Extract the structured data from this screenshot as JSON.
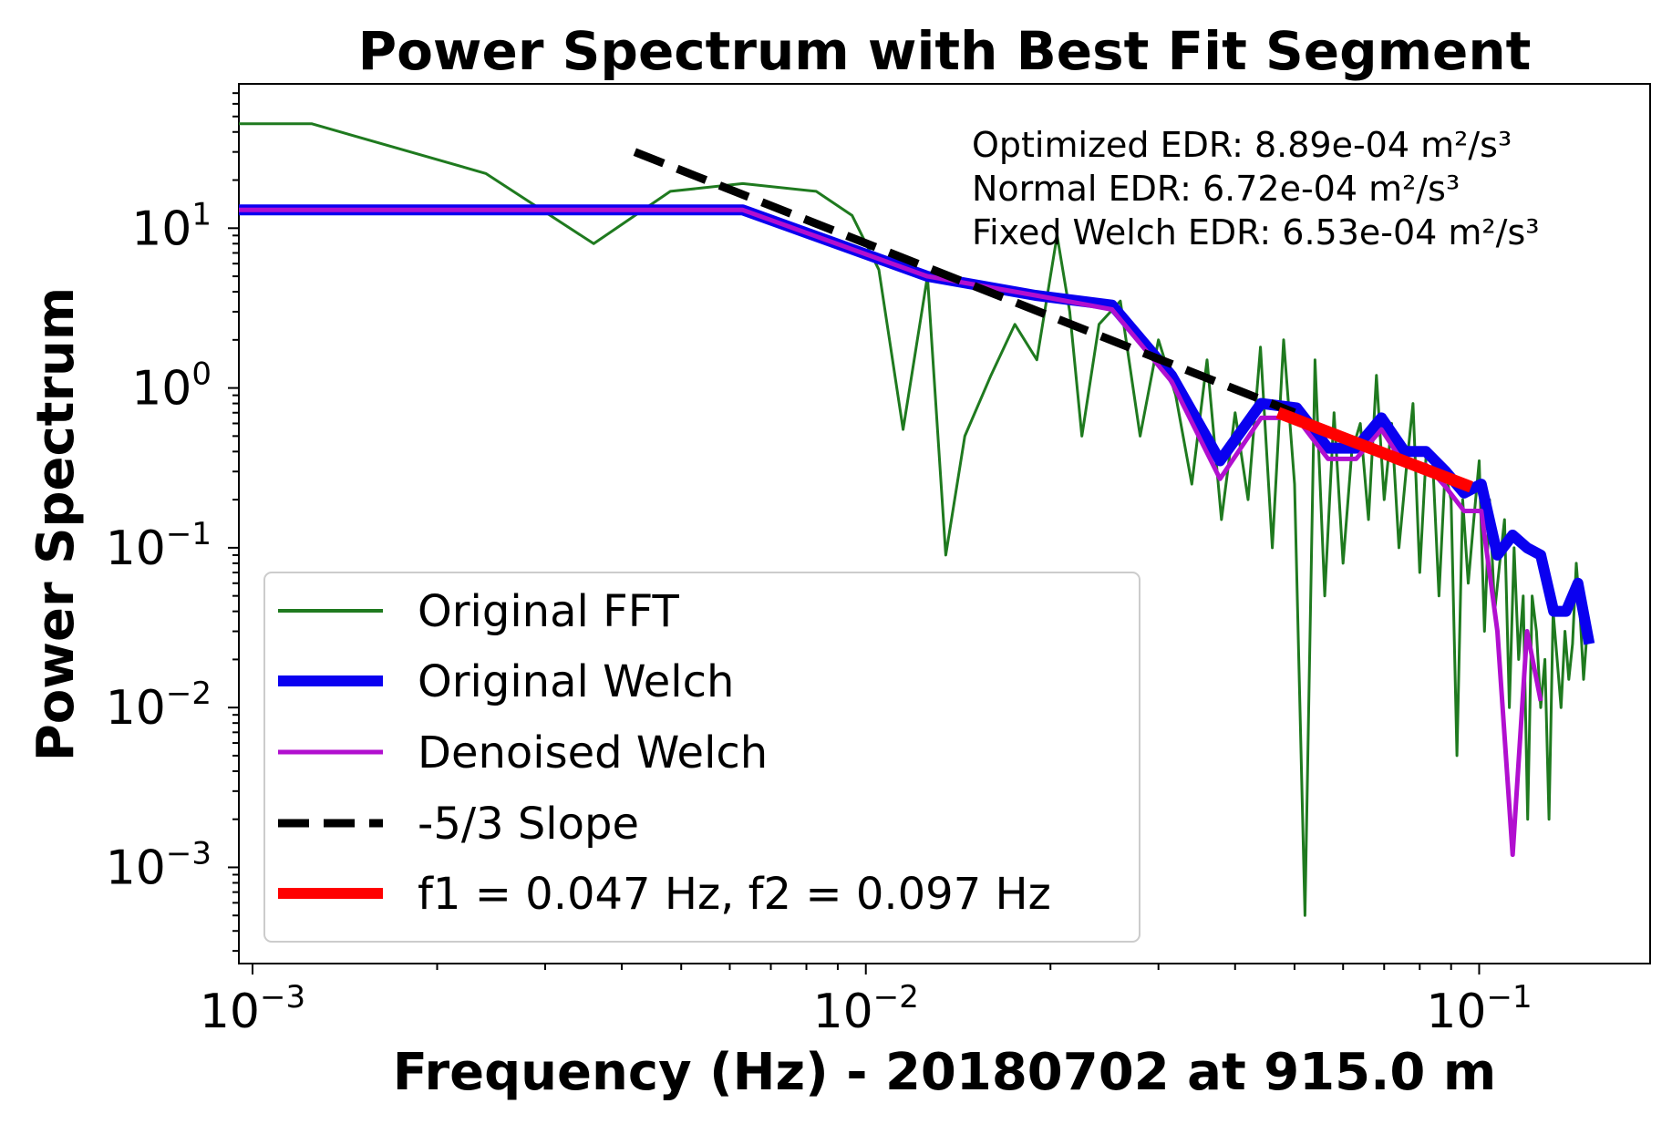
{
  "chart_data": {
    "type": "line",
    "title": "Power Spectrum with Best Fit Segment",
    "xlabel": "Frequency (Hz) - 20180702 at 915.0 m",
    "ylabel": "Power Spectrum",
    "xscale": "log",
    "yscale": "log",
    "xlim": [
      0.00095,
      0.19
    ],
    "ylim": [
      0.00025,
      80
    ],
    "x_ticks": [
      {
        "base": "10",
        "exp": "−3",
        "value": 0.001
      },
      {
        "base": "10",
        "exp": "−2",
        "value": 0.01
      },
      {
        "base": "10",
        "exp": "−1",
        "value": 0.1
      }
    ],
    "y_ticks": [
      {
        "base": "10",
        "exp": "1",
        "value": 10
      },
      {
        "base": "10",
        "exp": "0",
        "value": 1
      },
      {
        "base": "10",
        "exp": "−1",
        "value": 0.1
      },
      {
        "base": "10",
        "exp": "−2",
        "value": 0.01
      },
      {
        "base": "10",
        "exp": "−3",
        "value": 0.001
      }
    ],
    "grid": false,
    "legend_position": "lower-left",
    "annotations": [
      "Optimized EDR: 8.89e-04 m²/s³",
      "Normal EDR: 6.72e-04 m²/s³",
      "Fixed Welch EDR: 6.53e-04 m²/s³"
    ],
    "series": [
      {
        "name": "Original FFT",
        "color": "#1f7a1f",
        "style": "solid",
        "x": [
          0.00095,
          0.00125,
          0.0024,
          0.0036,
          0.0048,
          0.0063,
          0.0083,
          0.0095,
          0.0105,
          0.0115,
          0.0126,
          0.0135,
          0.0145,
          0.016,
          0.0175,
          0.019,
          0.0205,
          0.0215,
          0.0225,
          0.024,
          0.026,
          0.028,
          0.03,
          0.032,
          0.034,
          0.036,
          0.038,
          0.04,
          0.042,
          0.044,
          0.046,
          0.048,
          0.05,
          0.052,
          0.054,
          0.056,
          0.058,
          0.06,
          0.062,
          0.064,
          0.066,
          0.068,
          0.07,
          0.072,
          0.074,
          0.076,
          0.078,
          0.08,
          0.082,
          0.084,
          0.086,
          0.088,
          0.09,
          0.092,
          0.094,
          0.096,
          0.098,
          0.1,
          0.102,
          0.104,
          0.106,
          0.108,
          0.11,
          0.112,
          0.114,
          0.116,
          0.118,
          0.12,
          0.122,
          0.124,
          0.126,
          0.128,
          0.13,
          0.132,
          0.134,
          0.136,
          0.138,
          0.14,
          0.142,
          0.144,
          0.146,
          0.148,
          0.15
        ],
        "values": [
          45,
          45,
          22,
          8,
          17,
          19,
          17,
          12,
          5.5,
          0.55,
          5.0,
          0.09,
          0.5,
          1.2,
          2.5,
          1.5,
          9.0,
          3.0,
          0.5,
          2.5,
          3.5,
          0.5,
          2.0,
          0.9,
          0.25,
          1.5,
          0.15,
          0.7,
          0.2,
          1.8,
          0.1,
          2.0,
          0.25,
          0.0005,
          1.5,
          0.05,
          0.7,
          0.08,
          0.4,
          0.6,
          0.15,
          1.2,
          0.2,
          0.6,
          0.1,
          0.3,
          0.8,
          0.07,
          0.4,
          0.35,
          0.05,
          0.3,
          0.2,
          0.005,
          0.2,
          0.06,
          0.15,
          0.35,
          0.03,
          0.2,
          0.04,
          0.08,
          0.15,
          0.01,
          0.1,
          0.02,
          0.05,
          0.002,
          0.05,
          0.03,
          0.01,
          0.02,
          0.002,
          0.04,
          0.02,
          0.01,
          0.03,
          0.015,
          0.025,
          0.08,
          0.04,
          0.015,
          0.03
        ]
      },
      {
        "name": "Original Welch",
        "color": "#0a00f0",
        "style": "solid",
        "x": [
          0.00095,
          0.0063,
          0.0126,
          0.0189,
          0.0252,
          0.0315,
          0.0378,
          0.0441,
          0.0504,
          0.0567,
          0.063,
          0.0693,
          0.0756,
          0.0819,
          0.0882,
          0.0945,
          0.1008,
          0.1071,
          0.1134,
          0.1197,
          0.126,
          0.1323,
          0.1386,
          0.1449,
          0.1512
        ],
        "values": [
          13,
          13,
          5.0,
          3.8,
          3.3,
          1.2,
          0.35,
          0.8,
          0.75,
          0.42,
          0.42,
          0.65,
          0.4,
          0.4,
          0.3,
          0.22,
          0.25,
          0.09,
          0.12,
          0.1,
          0.09,
          0.04,
          0.04,
          0.06,
          0.025
        ]
      },
      {
        "name": "Denoised Welch",
        "color": "#b10fcf",
        "style": "solid",
        "x": [
          0.00095,
          0.0063,
          0.0126,
          0.0189,
          0.0252,
          0.0315,
          0.0378,
          0.0441,
          0.0504,
          0.0567,
          0.063,
          0.0693,
          0.0756,
          0.0819,
          0.0882,
          0.0945,
          0.1008,
          0.1071,
          0.1134,
          0.1197,
          0.126
        ],
        "values": [
          13,
          13,
          5.0,
          3.8,
          3.1,
          1.1,
          0.27,
          0.65,
          0.65,
          0.36,
          0.36,
          0.55,
          0.33,
          0.33,
          0.24,
          0.17,
          0.17,
          0.03,
          0.0012,
          0.03,
          0.011
        ]
      },
      {
        "name": "-5/3 Slope",
        "color": "#000000",
        "style": "dashed",
        "x": [
          0.0042,
          0.05
        ],
        "values": [
          30,
          0.7
        ]
      },
      {
        "name": "f1 = 0.047 Hz, f2 = 0.097 Hz",
        "color": "#ff0000",
        "style": "solid",
        "x": [
          0.047,
          0.097
        ],
        "values": [
          0.7,
          0.24
        ]
      }
    ]
  }
}
